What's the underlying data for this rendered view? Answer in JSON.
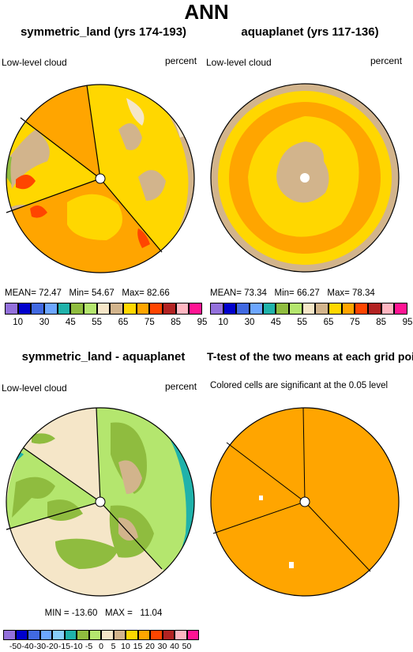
{
  "title": "ANN",
  "panels": {
    "p1": {
      "title": "symmetric_land (yrs 174-193)",
      "left": "Low-level cloud",
      "right": "percent",
      "mean_label": "MEAN=",
      "mean": "72.47",
      "min_label": "Min=",
      "min": "54.67",
      "max_label": "Max=",
      "max": "82.66"
    },
    "p2": {
      "title": "aquaplanet (yrs 117-136)",
      "left": "Low-level cloud",
      "right": "percent",
      "mean_label": "MEAN=",
      "mean": "73.34",
      "min_label": "Min=",
      "min": "66.27",
      "max_label": "Max=",
      "max": "78.34"
    },
    "p3": {
      "title": "symmetric_land - aquaplanet",
      "left": "Low-level cloud",
      "right": "percent",
      "minmax": "MIN = -13.60   MAX =   11.04"
    },
    "p4": {
      "title": "T-test of the two means at each grid point",
      "sub": "Colored cells are significant at the 0.05 level"
    }
  },
  "colorbar_top": {
    "colors": [
      "#9370db",
      "#0000cd",
      "#4169e1",
      "#6ca6ff",
      "#20b2aa",
      "#8fbc3f",
      "#b4e66e",
      "#f5e6c8",
      "#d2b48c",
      "#ffd700",
      "#ffa500",
      "#ff4500",
      "#b22222",
      "#ffb6c1",
      "#ff1493"
    ],
    "labels": [
      "10",
      "30",
      "45",
      "55",
      "65",
      "75",
      "85",
      "95"
    ]
  },
  "colorbar_bottom": {
    "colors": [
      "#9370db",
      "#0000cd",
      "#4169e1",
      "#6ca6ff",
      "#87cefa",
      "#20b2aa",
      "#8fbc3f",
      "#b4e66e",
      "#f5e6c8",
      "#d2b48c",
      "#ffd700",
      "#ffa500",
      "#ff4500",
      "#b22222",
      "#ffb6c1",
      "#ff1493"
    ],
    "labels": [
      "-50",
      "-40",
      "-30",
      "-20",
      "-15",
      "-10",
      "-5",
      "0",
      "5",
      "10",
      "15",
      "20",
      "30",
      "40",
      "50"
    ]
  },
  "chart_data": [
    {
      "type": "heatmap",
      "title": "symmetric_land (yrs 174-193)",
      "variable": "Low-level cloud",
      "units": "percent",
      "mean": 72.47,
      "min": 54.67,
      "max": 82.66
    },
    {
      "type": "heatmap",
      "title": "aquaplanet (yrs 117-136)",
      "variable": "Low-level cloud",
      "units": "percent",
      "mean": 73.34,
      "min": 66.27,
      "max": 78.34
    },
    {
      "type": "heatmap",
      "title": "symmetric_land - aquaplanet",
      "variable": "Low-level cloud",
      "units": "percent",
      "min": -13.6,
      "max": 11.04
    },
    {
      "type": "heatmap",
      "title": "T-test of the two means at each grid point",
      "subtitle": "Colored cells are significant at the 0.05 level"
    }
  ]
}
